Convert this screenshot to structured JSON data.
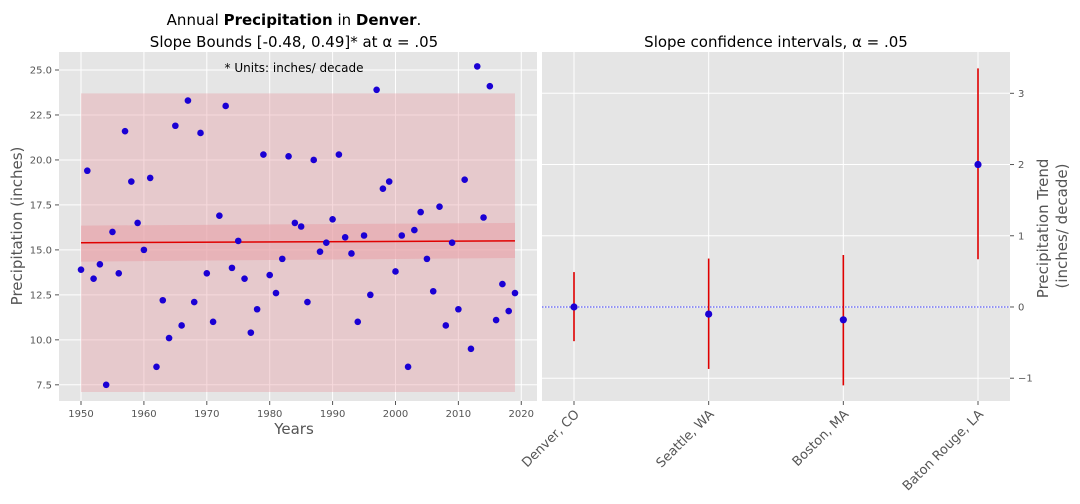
{
  "chart_data": [
    {
      "type": "scatter",
      "title_parts": [
        "Annual ",
        "Precipitation",
        " in ",
        "Denver",
        "."
      ],
      "subtitle": "Slope Bounds [-0.48, 0.49]* at α = .05",
      "annotation": "* Units: inches/ decade",
      "xlabel": "Years",
      "ylabel": "Precipitation (inches)",
      "xlim": [
        1946.5,
        2022.5
      ],
      "ylim": [
        6.6,
        26.0
      ],
      "xticks": [
        1950,
        1960,
        1970,
        1980,
        1990,
        2000,
        2010,
        2020
      ],
      "yticks": [
        7.5,
        10.0,
        12.5,
        15.0,
        17.5,
        20.0,
        22.5,
        25.0
      ],
      "grid": true,
      "point_color": "#1a00d4",
      "trend_color": "#e00000",
      "band_color": "#e8a0a8",
      "trend": {
        "x": [
          1950,
          2019
        ],
        "y": [
          15.4,
          15.5
        ]
      },
      "confidence_band": {
        "x": [
          1950,
          2019
        ],
        "lower": [
          14.35,
          14.55
        ],
        "upper": [
          16.35,
          16.5
        ]
      },
      "prediction_band": {
        "x": [
          1950,
          2019
        ],
        "lower": [
          7.1,
          7.1
        ],
        "upper": [
          23.7,
          23.7
        ]
      },
      "x": [
        1950,
        1951,
        1952,
        1953,
        1954,
        1955,
        1956,
        1957,
        1958,
        1959,
        1960,
        1961,
        1962,
        1963,
        1964,
        1965,
        1966,
        1967,
        1968,
        1969,
        1970,
        1971,
        1972,
        1973,
        1974,
        1975,
        1976,
        1977,
        1978,
        1979,
        1980,
        1981,
        1982,
        1983,
        1984,
        1985,
        1986,
        1987,
        1988,
        1989,
        1990,
        1991,
        1992,
        1993,
        1994,
        1995,
        1996,
        1997,
        1998,
        1999,
        2000,
        2001,
        2002,
        2003,
        2004,
        2005,
        2006,
        2007,
        2008,
        2009,
        2010,
        2011,
        2012,
        2013,
        2014,
        2015,
        2016,
        2017,
        2018,
        2019
      ],
      "y": [
        13.9,
        19.4,
        13.4,
        14.2,
        7.5,
        16.0,
        13.7,
        21.6,
        18.8,
        16.5,
        15.0,
        19.0,
        8.5,
        12.2,
        10.1,
        21.9,
        10.8,
        23.3,
        12.1,
        21.5,
        13.7,
        11.0,
        16.9,
        23.0,
        14.0,
        15.5,
        13.4,
        10.4,
        11.7,
        20.3,
        13.6,
        12.6,
        14.5,
        20.2,
        16.5,
        16.3,
        12.1,
        20.0,
        14.9,
        15.4,
        16.7,
        20.3,
        15.7,
        14.8,
        11.0,
        15.8,
        12.5,
        23.9,
        18.4,
        18.8,
        13.8,
        15.8,
        8.5,
        16.1,
        17.1,
        14.5,
        12.7,
        17.4,
        10.8,
        15.4,
        11.7,
        18.9,
        9.5,
        25.2,
        16.8,
        24.1,
        11.1,
        13.1,
        11.6,
        12.6
      ]
    },
    {
      "type": "errorbar",
      "title": "Slope confidence intervals, α = .05",
      "ylabel_line1": "Precipitation Trend",
      "ylabel_line2": "(inches/ decade)",
      "categories": [
        "Denver, CO",
        "Seattle, WA",
        "Boston, MA",
        "Baton Rouge, LA"
      ],
      "values": [
        0.0,
        -0.1,
        -0.18,
        2.0
      ],
      "lower": [
        -0.48,
        -0.87,
        -1.1,
        0.67
      ],
      "upper": [
        0.49,
        0.68,
        0.73,
        3.35
      ],
      "ylim": [
        -1.32,
        3.58
      ],
      "yticks": [
        -1,
        0,
        1,
        2,
        3
      ],
      "zero_line": true,
      "grid": true,
      "point_color": "#1a00d4",
      "bar_color": "#e00000",
      "zero_line_color": "#0000ff"
    }
  ]
}
